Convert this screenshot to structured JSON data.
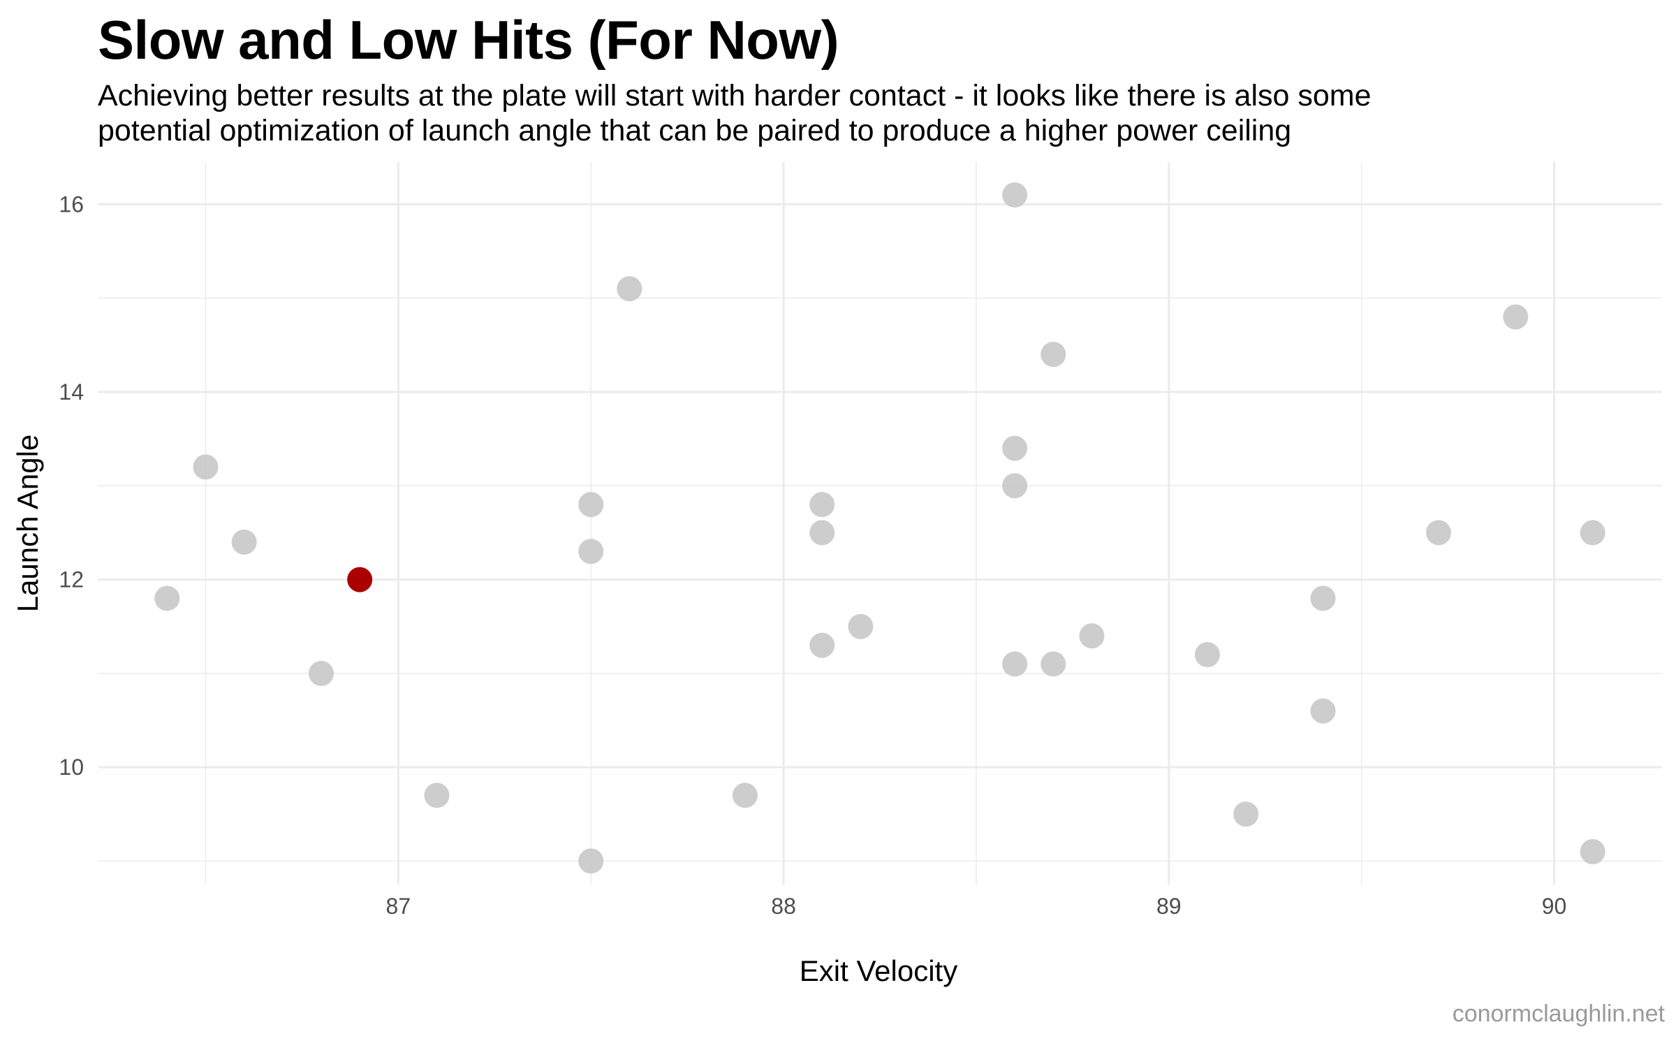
{
  "chart_data": {
    "type": "scatter",
    "title": "Slow and Low Hits (For Now)",
    "subtitle": [
      "Achieving better results at the plate will start with harder contact - it looks like there is also some",
      "potential optimization of launch angle that can be paired to produce a higher power ceiling"
    ],
    "xlabel": "Exit Velocity",
    "ylabel": "Launch Angle",
    "xlim": [
      86.22,
      90.28
    ],
    "ylim": [
      8.75,
      16.45
    ],
    "x_ticks": [
      87,
      88,
      89,
      90
    ],
    "x_minor_ticks": [
      86.5,
      87.5,
      88.5,
      89.5
    ],
    "y_ticks": [
      10,
      12,
      14,
      16
    ],
    "y_minor_ticks": [
      9,
      11,
      13,
      15
    ],
    "grid": true,
    "colors": {
      "point": "#c8c8c8",
      "highlight": "#aa0000",
      "grid": "#ebebeb"
    },
    "series": [
      {
        "points": [
          [
            86.4,
            11.8
          ],
          [
            86.5,
            13.2
          ],
          [
            86.6,
            12.4
          ],
          [
            86.8,
            11.0
          ],
          [
            87.1,
            9.7
          ],
          [
            87.5,
            12.8
          ],
          [
            87.5,
            12.3
          ],
          [
            87.5,
            9.0
          ],
          [
            87.6,
            15.1
          ],
          [
            87.9,
            9.7
          ],
          [
            88.1,
            12.8
          ],
          [
            88.1,
            12.5
          ],
          [
            88.1,
            11.3
          ],
          [
            88.2,
            11.5
          ],
          [
            88.6,
            16.1
          ],
          [
            88.6,
            13.4
          ],
          [
            88.6,
            13.0
          ],
          [
            88.6,
            11.1
          ],
          [
            88.7,
            14.4
          ],
          [
            88.7,
            11.1
          ],
          [
            88.8,
            11.4
          ],
          [
            89.1,
            11.2
          ],
          [
            89.2,
            9.5
          ],
          [
            89.4,
            11.8
          ],
          [
            89.4,
            10.6
          ],
          [
            89.7,
            12.5
          ],
          [
            89.9,
            14.8
          ],
          [
            90.1,
            12.5
          ],
          [
            90.1,
            9.1
          ]
        ]
      },
      {
        "highlight": true,
        "points": [
          [
            86.9,
            12.0
          ]
        ]
      }
    ]
  },
  "caption": "conormclaughlin.net"
}
